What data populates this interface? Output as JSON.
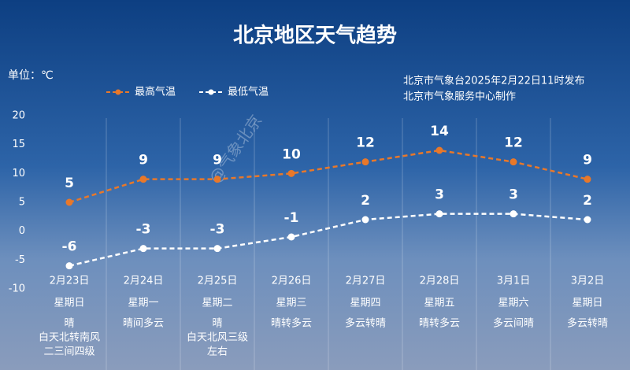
{
  "title": "北京地区天气趋势",
  "unit_label": "单位：℃",
  "source_lines": [
    "北京市气象台2025年2月22日11时发布",
    "北京市气象服务中心制作"
  ],
  "watermark": "@气象北京",
  "chart_data": {
    "type": "line",
    "categories": [
      "2月23日",
      "2月24日",
      "2月25日",
      "2月26日",
      "2月27日",
      "2月28日",
      "3月1日",
      "3月2日"
    ],
    "weekdays": [
      "星期日",
      "星期一",
      "星期二",
      "星期三",
      "星期四",
      "星期五",
      "星期六",
      "星期日"
    ],
    "weather": [
      [
        "晴",
        "白天北转南风",
        "二三间四级"
      ],
      [
        "晴间多云"
      ],
      [
        "晴",
        "白天北风三级",
        "左右"
      ],
      [
        "晴转多云"
      ],
      [
        "多云转晴"
      ],
      [
        "晴转多云"
      ],
      [
        "多云间晴"
      ],
      [
        "多云转晴"
      ]
    ],
    "ylim": [
      -10,
      20
    ],
    "yticks": [
      -10,
      -5,
      0,
      5,
      10,
      15,
      20
    ],
    "grid": false,
    "series": [
      {
        "name": "最高气温",
        "color": "#e8782a",
        "values": [
          5,
          9,
          9,
          10,
          12,
          14,
          12,
          9
        ]
      },
      {
        "name": "最低气温",
        "color": "#ffffff",
        "values": [
          -6,
          -3,
          -3,
          -1,
          2,
          3,
          3,
          2
        ]
      }
    ]
  }
}
